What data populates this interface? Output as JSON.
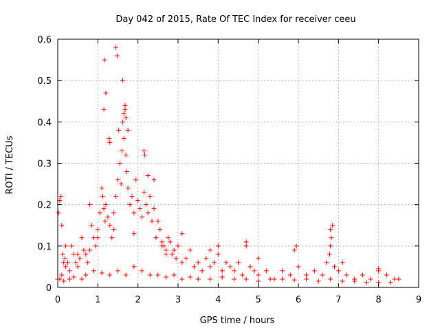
{
  "chart_data": {
    "type": "scatter",
    "title": "Day 042 of 2015, Rate Of TEC Index for receiver ceeu",
    "xlabel": "GPS time / hours",
    "ylabel": "ROTI / TECUs",
    "xlim": [
      0,
      9
    ],
    "ylim": [
      0,
      0.6
    ],
    "x_ticks": [
      0,
      1,
      2,
      3,
      4,
      5,
      6,
      7,
      8,
      9
    ],
    "x_tick_labels": [
      "0",
      "1",
      "2",
      "3",
      "4",
      "5",
      "6",
      "7",
      "8",
      "9"
    ],
    "y_ticks": [
      0,
      0.1,
      0.2,
      0.3,
      0.4,
      0.5,
      0.6
    ],
    "y_tick_labels": [
      "0",
      "0.1",
      "0.2",
      "0.3",
      "0.4",
      "0.5",
      "0.6"
    ],
    "grid": true,
    "marker": "+",
    "color": "#ff0000",
    "series": [
      {
        "name": "ROTI",
        "x": [
          0.0,
          0.02,
          0.05,
          0.08,
          0.1,
          0.12,
          0.15,
          0.18,
          0.2,
          0.25,
          0.3,
          0.35,
          0.4,
          0.45,
          0.5,
          0.55,
          0.6,
          0.65,
          0.7,
          0.75,
          0.8,
          0.85,
          0.9,
          0.95,
          1.0,
          1.05,
          1.1,
          1.12,
          1.15,
          1.18,
          1.2,
          1.25,
          1.3,
          1.35,
          1.4,
          1.45,
          1.5,
          1.52,
          1.55,
          1.58,
          1.6,
          1.62,
          1.65,
          1.68,
          1.7,
          1.72,
          1.75,
          1.8,
          1.85,
          1.9,
          1.95,
          2.0,
          2.05,
          2.1,
          2.15,
          2.2,
          2.25,
          2.3,
          2.35,
          2.4,
          2.45,
          2.5,
          2.55,
          2.6,
          2.65,
          2.7,
          2.75,
          2.8,
          2.85,
          2.9,
          2.95,
          3.0,
          3.1,
          3.2,
          3.3,
          3.4,
          3.5,
          3.6,
          3.7,
          3.8,
          3.9,
          4.0,
          4.1,
          4.2,
          4.3,
          4.4,
          4.5,
          4.6,
          4.7,
          4.8,
          4.9,
          5.0,
          5.2,
          5.4,
          5.6,
          5.8,
          5.9,
          6.0,
          6.2,
          6.4,
          6.6,
          6.7,
          6.8,
          6.85,
          6.9,
          7.0,
          7.2,
          7.4,
          7.6,
          7.8,
          8.0,
          8.2,
          8.4,
          8.5,
          0.05,
          0.1,
          0.15,
          0.3,
          0.4,
          0.6,
          0.7,
          0.9,
          1.1,
          1.3,
          1.5,
          1.7,
          1.9,
          2.1,
          2.3,
          2.5,
          2.7,
          2.9,
          3.1,
          3.3,
          3.5,
          3.8,
          4.1,
          4.4,
          4.7,
          5.0,
          5.3,
          5.6,
          5.9,
          6.2,
          6.5,
          6.8,
          7.1,
          7.4,
          7.7,
          8.0,
          8.3,
          1.15,
          1.17,
          1.2,
          1.28,
          1.3,
          1.45,
          1.48,
          1.62,
          1.65,
          1.68,
          1.7,
          1.75,
          2.15,
          2.17,
          2.25,
          2.4,
          1.0,
          0.2,
          0.5,
          0.8,
          1.4,
          1.9,
          2.6,
          2.7,
          3.1,
          3.8,
          4.0,
          4.7,
          5.0,
          5.95,
          6.8,
          6.82,
          6.78,
          7.1,
          8.0
        ],
        "y": [
          0.02,
          0.18,
          0.21,
          0.22,
          0.15,
          0.08,
          0.06,
          0.07,
          0.05,
          0.06,
          0.04,
          0.1,
          0.08,
          0.06,
          0.05,
          0.07,
          0.12,
          0.09,
          0.08,
          0.06,
          0.2,
          0.15,
          0.12,
          0.1,
          0.14,
          0.18,
          0.24,
          0.22,
          0.19,
          0.16,
          0.2,
          0.17,
          0.15,
          0.12,
          0.18,
          0.22,
          0.26,
          0.38,
          0.3,
          0.25,
          0.33,
          0.4,
          0.36,
          0.43,
          0.32,
          0.28,
          0.24,
          0.2,
          0.22,
          0.18,
          0.26,
          0.21,
          0.19,
          0.17,
          0.23,
          0.2,
          0.18,
          0.22,
          0.16,
          0.19,
          0.12,
          0.16,
          0.14,
          0.11,
          0.1,
          0.09,
          0.12,
          0.11,
          0.08,
          0.09,
          0.07,
          0.1,
          0.06,
          0.07,
          0.09,
          0.05,
          0.06,
          0.04,
          0.07,
          0.05,
          0.06,
          0.08,
          0.04,
          0.06,
          0.05,
          0.04,
          0.06,
          0.03,
          0.1,
          0.05,
          0.04,
          0.03,
          0.04,
          0.02,
          0.04,
          0.03,
          0.09,
          0.05,
          0.03,
          0.04,
          0.03,
          0.06,
          0.1,
          0.15,
          0.05,
          0.04,
          0.03,
          0.02,
          0.03,
          0.02,
          0.04,
          0.03,
          0.02,
          0.02,
          0.02,
          0.03,
          0.015,
          0.02,
          0.025,
          0.02,
          0.03,
          0.04,
          0.035,
          0.03,
          0.04,
          0.03,
          0.05,
          0.04,
          0.03,
          0.03,
          0.025,
          0.03,
          0.02,
          0.025,
          0.02,
          0.02,
          0.025,
          0.02,
          0.02,
          0.015,
          0.02,
          0.02,
          0.018,
          0.02,
          0.015,
          0.02,
          0.015,
          0.015,
          0.012,
          0.012,
          0.012,
          0.43,
          0.55,
          0.47,
          0.36,
          0.35,
          0.58,
          0.56,
          0.5,
          0.42,
          0.44,
          0.41,
          0.38,
          0.33,
          0.32,
          0.27,
          0.26,
          0.12,
          0.1,
          0.08,
          0.09,
          0.14,
          0.13,
          0.1,
          0.08,
          0.13,
          0.09,
          0.1,
          0.11,
          0.07,
          0.1,
          0.14,
          0.12,
          0.08,
          0.06,
          0.045
        ]
      }
    ]
  }
}
